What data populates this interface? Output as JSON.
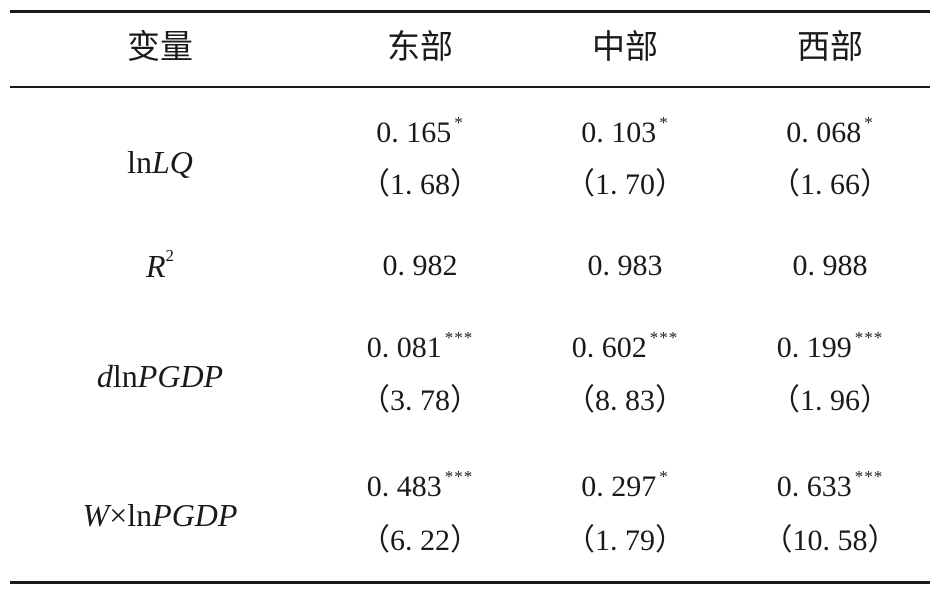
{
  "headers": [
    "变量",
    "东部",
    "中部",
    "西部"
  ],
  "rows": [
    {
      "var_parts": [
        "ln",
        "LQ"
      ],
      "var_italic": [
        false,
        true
      ],
      "var_sup": "",
      "cells": [
        {
          "coef": "0. 165",
          "stars": "*",
          "tstat": "（1. 68）"
        },
        {
          "coef": "0. 103",
          "stars": "*",
          "tstat": "（1. 70）"
        },
        {
          "coef": "0. 068",
          "stars": "*",
          "tstat": "（1. 66）"
        }
      ]
    },
    {
      "var_parts": [
        "R"
      ],
      "var_italic": [
        true
      ],
      "var_sup": "2",
      "cells": [
        {
          "coef": "0. 982",
          "stars": "",
          "tstat": ""
        },
        {
          "coef": "0. 983",
          "stars": "",
          "tstat": ""
        },
        {
          "coef": "0. 988",
          "stars": "",
          "tstat": ""
        }
      ]
    },
    {
      "var_parts": [
        "d",
        "ln",
        "PGDP"
      ],
      "var_italic": [
        true,
        false,
        true
      ],
      "var_sup": "",
      "cells": [
        {
          "coef": "0. 081",
          "stars": "***",
          "tstat": "（3. 78）"
        },
        {
          "coef": "0. 602",
          "stars": "***",
          "tstat": "（8. 83）"
        },
        {
          "coef": "0. 199",
          "stars": "***",
          "tstat": "（1. 96）"
        }
      ]
    },
    {
      "var_parts": [
        "W",
        "×ln",
        "PGDP"
      ],
      "var_italic": [
        true,
        false,
        true
      ],
      "var_sup": "",
      "cells": [
        {
          "coef": "0. 483",
          "stars": "***",
          "tstat": "（6. 22）"
        },
        {
          "coef": "0. 297",
          "stars": "*",
          "tstat": "（1. 79）"
        },
        {
          "coef": "0. 633",
          "stars": "***",
          "tstat": "（10. 58）"
        }
      ]
    }
  ]
}
